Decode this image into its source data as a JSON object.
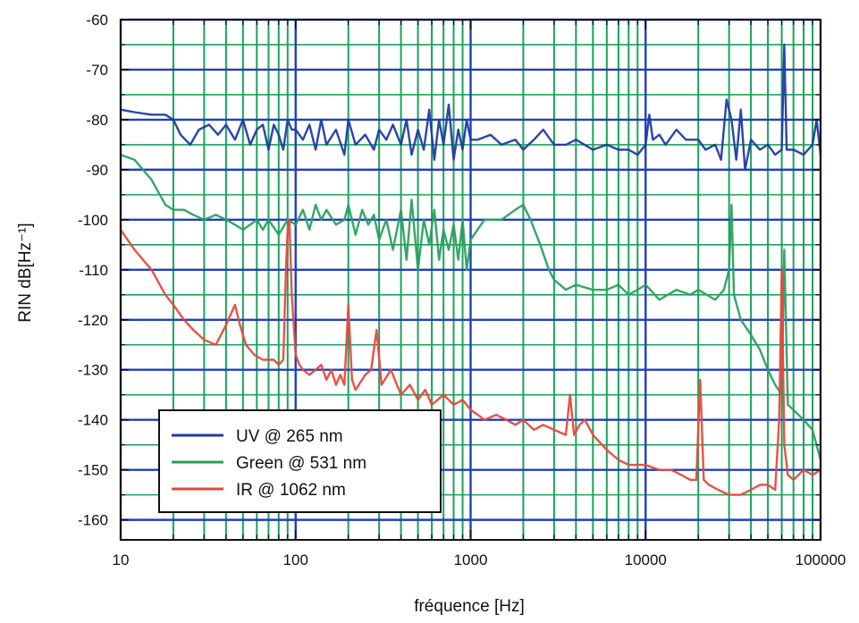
{
  "chart_data": {
    "type": "line",
    "xscale": "log",
    "xlabel": "fréquence [Hz]",
    "ylabel": "RIN dB[Hz⁻¹]",
    "xlim": [
      10,
      100000
    ],
    "ylim": [
      -164,
      -60
    ],
    "x_ticks": [
      {
        "value": 10,
        "label": "10"
      },
      {
        "value": 100,
        "label": "100"
      },
      {
        "value": 1000,
        "label": "1000"
      },
      {
        "value": 10000,
        "label": "10000"
      },
      {
        "value": 100000,
        "label": "100000"
      }
    ],
    "y_ticks": [
      {
        "value": -60,
        "label": "-60"
      },
      {
        "value": -70,
        "label": "-70"
      },
      {
        "value": -80,
        "label": "-80"
      },
      {
        "value": -90,
        "label": "-90"
      },
      {
        "value": -100,
        "label": "-100"
      },
      {
        "value": -110,
        "label": "-110"
      },
      {
        "value": -120,
        "label": "-120"
      },
      {
        "value": -130,
        "label": "-130"
      },
      {
        "value": -140,
        "label": "-140"
      },
      {
        "value": -150,
        "label": "-150"
      },
      {
        "value": -160,
        "label": "-160"
      }
    ],
    "grid": true,
    "grid_colors": {
      "major": "#1f3fbf",
      "minor": "#1aa35a"
    },
    "legend_position": "bottom-left",
    "series": [
      {
        "name": "UV @ 265 nm",
        "color": "#1f3aa8",
        "points": [
          [
            10,
            -78
          ],
          [
            12,
            -78.5
          ],
          [
            15,
            -79
          ],
          [
            18,
            -79
          ],
          [
            20,
            -80
          ],
          [
            22,
            -83
          ],
          [
            25,
            -85
          ],
          [
            28,
            -82
          ],
          [
            32,
            -81
          ],
          [
            36,
            -83
          ],
          [
            40,
            -81
          ],
          [
            45,
            -84
          ],
          [
            50,
            -80
          ],
          [
            55,
            -85
          ],
          [
            60,
            -82
          ],
          [
            65,
            -81
          ],
          [
            70,
            -86
          ],
          [
            75,
            -81
          ],
          [
            80,
            -83
          ],
          [
            85,
            -86
          ],
          [
            90,
            -80
          ],
          [
            95,
            -82
          ],
          [
            100,
            -82
          ],
          [
            110,
            -84
          ],
          [
            120,
            -81
          ],
          [
            130,
            -86
          ],
          [
            140,
            -80
          ],
          [
            150,
            -85
          ],
          [
            170,
            -82
          ],
          [
            190,
            -87
          ],
          [
            200,
            -80
          ],
          [
            220,
            -85
          ],
          [
            250,
            -83
          ],
          [
            280,
            -86
          ],
          [
            300,
            -82
          ],
          [
            330,
            -84
          ],
          [
            360,
            -81
          ],
          [
            400,
            -85
          ],
          [
            430,
            -80
          ],
          [
            460,
            -87
          ],
          [
            500,
            -82
          ],
          [
            540,
            -86
          ],
          [
            580,
            -78
          ],
          [
            620,
            -88
          ],
          [
            660,
            -80
          ],
          [
            700,
            -85
          ],
          [
            750,
            -77
          ],
          [
            800,
            -88
          ],
          [
            850,
            -82
          ],
          [
            900,
            -86
          ],
          [
            950,
            -80
          ],
          [
            1000,
            -84
          ],
          [
            1100,
            -84
          ],
          [
            1300,
            -83
          ],
          [
            1500,
            -85
          ],
          [
            1800,
            -84
          ],
          [
            2000,
            -86
          ],
          [
            2300,
            -84
          ],
          [
            2600,
            -82
          ],
          [
            3000,
            -85
          ],
          [
            3500,
            -85
          ],
          [
            4000,
            -84
          ],
          [
            5000,
            -86
          ],
          [
            6000,
            -85
          ],
          [
            7000,
            -86
          ],
          [
            8000,
            -86
          ],
          [
            9000,
            -87
          ],
          [
            10000,
            -85
          ],
          [
            10500,
            -79
          ],
          [
            11000,
            -84
          ],
          [
            12000,
            -83
          ],
          [
            13000,
            -85
          ],
          [
            15000,
            -82
          ],
          [
            17000,
            -84
          ],
          [
            20000,
            -84
          ],
          [
            22000,
            -86
          ],
          [
            25000,
            -85
          ],
          [
            27000,
            -88
          ],
          [
            29000,
            -76
          ],
          [
            31000,
            -80
          ],
          [
            33000,
            -88
          ],
          [
            35000,
            -78
          ],
          [
            37000,
            -90
          ],
          [
            40000,
            -84
          ],
          [
            45000,
            -86
          ],
          [
            50000,
            -85
          ],
          [
            55000,
            -87
          ],
          [
            60000,
            -86
          ],
          [
            62000,
            -65
          ],
          [
            64000,
            -86
          ],
          [
            70000,
            -86
          ],
          [
            80000,
            -87
          ],
          [
            90000,
            -85
          ],
          [
            95000,
            -80
          ],
          [
            100000,
            -87
          ]
        ]
      },
      {
        "name": "Green @ 531 nm",
        "color": "#2aa060",
        "points": [
          [
            10,
            -87
          ],
          [
            12,
            -88
          ],
          [
            15,
            -92
          ],
          [
            18,
            -97
          ],
          [
            20,
            -98
          ],
          [
            23,
            -98
          ],
          [
            26,
            -99
          ],
          [
            30,
            -100
          ],
          [
            35,
            -99
          ],
          [
            40,
            -100
          ],
          [
            45,
            -101
          ],
          [
            50,
            -102
          ],
          [
            55,
            -101
          ],
          [
            60,
            -100
          ],
          [
            65,
            -102
          ],
          [
            70,
            -100
          ],
          [
            80,
            -103
          ],
          [
            90,
            -100
          ],
          [
            100,
            -101
          ],
          [
            110,
            -98
          ],
          [
            120,
            -102
          ],
          [
            130,
            -97
          ],
          [
            140,
            -100
          ],
          [
            150,
            -98
          ],
          [
            170,
            -101
          ],
          [
            190,
            -100
          ],
          [
            200,
            -97
          ],
          [
            220,
            -103
          ],
          [
            240,
            -98
          ],
          [
            260,
            -101
          ],
          [
            280,
            -99
          ],
          [
            300,
            -104
          ],
          [
            330,
            -100
          ],
          [
            360,
            -106
          ],
          [
            400,
            -98
          ],
          [
            430,
            -108
          ],
          [
            460,
            -96
          ],
          [
            500,
            -110
          ],
          [
            540,
            -100
          ],
          [
            580,
            -105
          ],
          [
            620,
            -98
          ],
          [
            660,
            -108
          ],
          [
            700,
            -102
          ],
          [
            750,
            -106
          ],
          [
            800,
            -101
          ],
          [
            850,
            -108
          ],
          [
            900,
            -100
          ],
          [
            950,
            -110
          ],
          [
            1000,
            -104
          ],
          [
            1200,
            -100
          ],
          [
            1500,
            -100
          ],
          [
            1800,
            -98
          ],
          [
            2000,
            -97
          ],
          [
            2200,
            -100
          ],
          [
            2500,
            -105
          ],
          [
            2800,
            -110
          ],
          [
            3000,
            -112
          ],
          [
            3500,
            -114
          ],
          [
            4000,
            -113
          ],
          [
            5000,
            -114
          ],
          [
            6000,
            -114
          ],
          [
            7000,
            -113
          ],
          [
            8000,
            -115
          ],
          [
            9000,
            -114
          ],
          [
            10000,
            -113
          ],
          [
            12000,
            -116
          ],
          [
            15000,
            -114
          ],
          [
            18000,
            -115
          ],
          [
            20000,
            -114
          ],
          [
            25000,
            -116
          ],
          [
            28000,
            -114
          ],
          [
            30000,
            -110
          ],
          [
            31000,
            -97
          ],
          [
            32000,
            -115
          ],
          [
            35000,
            -120
          ],
          [
            40000,
            -123
          ],
          [
            45000,
            -126
          ],
          [
            50000,
            -130
          ],
          [
            55000,
            -133
          ],
          [
            60000,
            -135
          ],
          [
            62000,
            -106
          ],
          [
            65000,
            -137
          ],
          [
            70000,
            -138
          ],
          [
            80000,
            -140
          ],
          [
            90000,
            -142
          ],
          [
            100000,
            -148
          ]
        ]
      },
      {
        "name": "IR @ 1062 nm",
        "color": "#e8483c",
        "points": [
          [
            10,
            -102
          ],
          [
            12,
            -106
          ],
          [
            15,
            -110
          ],
          [
            18,
            -115
          ],
          [
            20,
            -117
          ],
          [
            23,
            -120
          ],
          [
            26,
            -122
          ],
          [
            30,
            -124
          ],
          [
            35,
            -125
          ],
          [
            40,
            -121
          ],
          [
            45,
            -117
          ],
          [
            48,
            -121
          ],
          [
            52,
            -125
          ],
          [
            58,
            -127
          ],
          [
            65,
            -128
          ],
          [
            70,
            -128
          ],
          [
            75,
            -128
          ],
          [
            80,
            -129
          ],
          [
            85,
            -128
          ],
          [
            88,
            -110
          ],
          [
            90,
            -102
          ],
          [
            92,
            -100
          ],
          [
            95,
            -115
          ],
          [
            100,
            -127
          ],
          [
            105,
            -129
          ],
          [
            110,
            -130
          ],
          [
            120,
            -131
          ],
          [
            130,
            -130
          ],
          [
            140,
            -129
          ],
          [
            150,
            -132
          ],
          [
            160,
            -130
          ],
          [
            170,
            -133
          ],
          [
            180,
            -131
          ],
          [
            190,
            -133
          ],
          [
            200,
            -117
          ],
          [
            210,
            -132
          ],
          [
            220,
            -134
          ],
          [
            250,
            -131
          ],
          [
            270,
            -130
          ],
          [
            290,
            -122
          ],
          [
            310,
            -133
          ],
          [
            350,
            -130
          ],
          [
            400,
            -135
          ],
          [
            450,
            -133
          ],
          [
            500,
            -136
          ],
          [
            550,
            -134
          ],
          [
            600,
            -137
          ],
          [
            700,
            -135
          ],
          [
            800,
            -137
          ],
          [
            900,
            -136
          ],
          [
            1000,
            -138
          ],
          [
            1100,
            -139
          ],
          [
            1200,
            -140
          ],
          [
            1400,
            -139
          ],
          [
            1600,
            -140
          ],
          [
            1800,
            -141
          ],
          [
            2000,
            -140
          ],
          [
            2300,
            -142
          ],
          [
            2600,
            -141
          ],
          [
            3000,
            -142
          ],
          [
            3500,
            -143
          ],
          [
            3700,
            -135
          ],
          [
            3900,
            -143
          ],
          [
            4200,
            -141
          ],
          [
            4500,
            -140
          ],
          [
            5000,
            -143
          ],
          [
            6000,
            -146
          ],
          [
            7000,
            -148
          ],
          [
            8000,
            -149
          ],
          [
            9000,
            -149
          ],
          [
            10000,
            -149
          ],
          [
            12000,
            -150
          ],
          [
            14000,
            -150
          ],
          [
            16000,
            -151
          ],
          [
            18000,
            -152
          ],
          [
            19500,
            -152
          ],
          [
            20500,
            -132
          ],
          [
            21500,
            -152
          ],
          [
            23000,
            -153
          ],
          [
            26000,
            -154
          ],
          [
            30000,
            -155
          ],
          [
            35000,
            -155
          ],
          [
            40000,
            -154
          ],
          [
            45000,
            -153
          ],
          [
            50000,
            -153
          ],
          [
            55000,
            -154
          ],
          [
            58000,
            -140
          ],
          [
            60000,
            -110
          ],
          [
            62000,
            -145
          ],
          [
            65000,
            -151
          ],
          [
            70000,
            -152
          ],
          [
            80000,
            -150
          ],
          [
            90000,
            -151
          ],
          [
            100000,
            -150
          ]
        ]
      }
    ]
  }
}
